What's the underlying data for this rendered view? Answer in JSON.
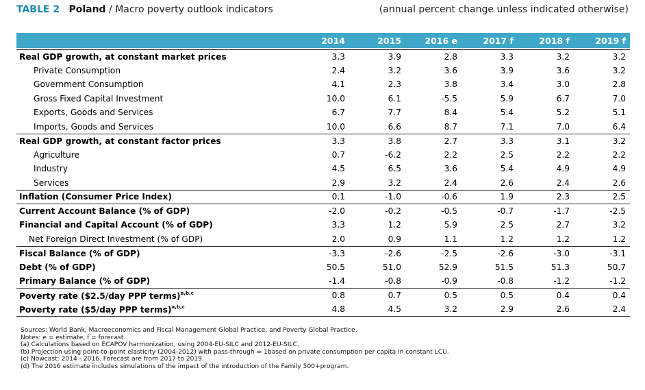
{
  "title": {
    "table_number": "TABLE 2",
    "country": "Poland",
    "separator": "/",
    "subject": "Macro poverty outlook indicators",
    "unit_note": "(annual percent change unless indicated otherwise)"
  },
  "columns": [
    "2014",
    "2015",
    "2016 e",
    "2017 f",
    "2018 f",
    "2019 f"
  ],
  "rows": [
    {
      "label": "Real GDP growth, at constant market prices",
      "values": [
        "3.3",
        "3.9",
        "2.8",
        "3.3",
        "3.2",
        "3.2"
      ]
    },
    {
      "label": "Private Consumption",
      "values": [
        "2.4",
        "3.2",
        "3.6",
        "3.9",
        "3.6",
        "3.2"
      ]
    },
    {
      "label": "Government Consumption",
      "values": [
        "4.1",
        "2.3",
        "3.8",
        "3.4",
        "3.0",
        "2.8"
      ]
    },
    {
      "label": "Gross Fixed Capital Investment",
      "values": [
        "10.0",
        "6.1",
        "-5.5",
        "5.9",
        "6.7",
        "7.0"
      ]
    },
    {
      "label": "Exports, Goods and Services",
      "values": [
        "6.7",
        "7.7",
        "8.4",
        "5.4",
        "5.2",
        "5.1"
      ]
    },
    {
      "label": "Imports, Goods and Services",
      "values": [
        "10.0",
        "6.6",
        "8.7",
        "7.1",
        "7.0",
        "6.4"
      ]
    },
    {
      "label": "Real GDP growth, at constant factor prices",
      "values": [
        "3.3",
        "3.8",
        "2.7",
        "3.3",
        "3.1",
        "3.2"
      ]
    },
    {
      "label": "Agriculture",
      "values": [
        "0.7",
        "-6.2",
        "2.2",
        "2.5",
        "2.2",
        "2.2"
      ]
    },
    {
      "label": "Industry",
      "values": [
        "4.5",
        "6.5",
        "3.6",
        "5.4",
        "4.9",
        "4.9"
      ]
    },
    {
      "label": "Services",
      "values": [
        "2.9",
        "3.2",
        "2.4",
        "2.6",
        "2.4",
        "2.6"
      ]
    },
    {
      "label": "Inflation (Consumer Price Index)",
      "values": [
        "0.1",
        "-1.0",
        "-0.6",
        "1.9",
        "2.3",
        "2.5"
      ]
    },
    {
      "label": "Current Account Balance (% of GDP)",
      "values": [
        "-2.0",
        "-0.2",
        "-0.5",
        "-0.7",
        "-1.7",
        "-2.5"
      ]
    },
    {
      "label": "Financial and Capital Account (% of GDP)",
      "values": [
        "3.3",
        "1.2",
        "5.9",
        "2.5",
        "2.7",
        "3.2"
      ]
    },
    {
      "label": "Net Foreign Direct Investment (% of GDP)",
      "values": [
        "2.0",
        "0.9",
        "1.1",
        "1.2",
        "1.2",
        "1.2"
      ]
    },
    {
      "label": "Fiscal Balance (% of GDP)",
      "values": [
        "-3.3",
        "-2.6",
        "-2.5",
        "-2.6",
        "-3.0",
        "-3.1"
      ]
    },
    {
      "label": "Debt (% of GDP)",
      "values": [
        "50.5",
        "51.0",
        "52.9",
        "51.5",
        "51.3",
        "50.7"
      ]
    },
    {
      "label": "Primary Balance (% of GDP)",
      "values": [
        "-1.4",
        "-0.8",
        "-0.9",
        "-0.8",
        "-1.2",
        "-1.2"
      ]
    },
    {
      "label": "Poverty rate ($2.5/day PPP terms)",
      "sup": "a,b,c",
      "values": [
        "0.8",
        "0.7",
        "0.5",
        "0.5",
        "0.4",
        "0.4"
      ]
    },
    {
      "label": "Poverty rate ($5/day PPP terms)",
      "sup": "a,b,c",
      "values": [
        "4.8",
        "4.5",
        "3.2",
        "2.9",
        "2.6",
        "2.4"
      ]
    }
  ],
  "notes": [
    "Sources: World Bank, Macroeconomics and Fiscal Management Global Practice, and Poverty Global Practice.",
    "Notes: e = estimate, f = forecast.",
    "(a) Calculations based on ECAPOV harmonization, using 2004-EU-SILC and 2012-EU-SILC.",
    "(b) Projection using point-to-point elasticity (2004-2012) with pass-through = 1based on private consumption per capita in constant LCU.",
    "(c) Nowcast: 2014 - 2016. Forecast are from 2017 to 2019.",
    "(d) The 2016 estimate includes simulations of the impact of the introduction of the Family 500+program."
  ]
}
